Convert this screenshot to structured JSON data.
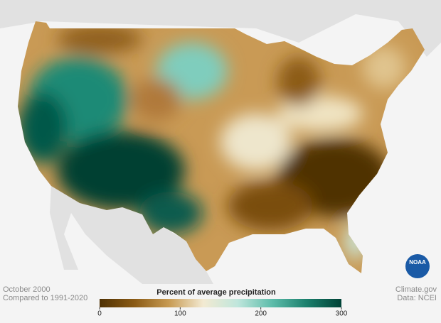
{
  "map": {
    "caption_left": {
      "line1": "October 2000",
      "line2": "Compared to 1991-2020"
    },
    "caption_right": {
      "line1": "Climate.gov",
      "line2": "Data: NCEI"
    },
    "logo": "NOAA",
    "legend": {
      "title": "Percent of average precipitation",
      "range": [
        0,
        300
      ],
      "ticks": [
        0,
        100,
        200,
        300
      ],
      "colors": [
        "#4f3103",
        "#8a5a14",
        "#c79a52",
        "#f3ead2",
        "#bfe6dc",
        "#5cbcaa",
        "#1a7f6c",
        "#004236"
      ]
    }
  }
}
